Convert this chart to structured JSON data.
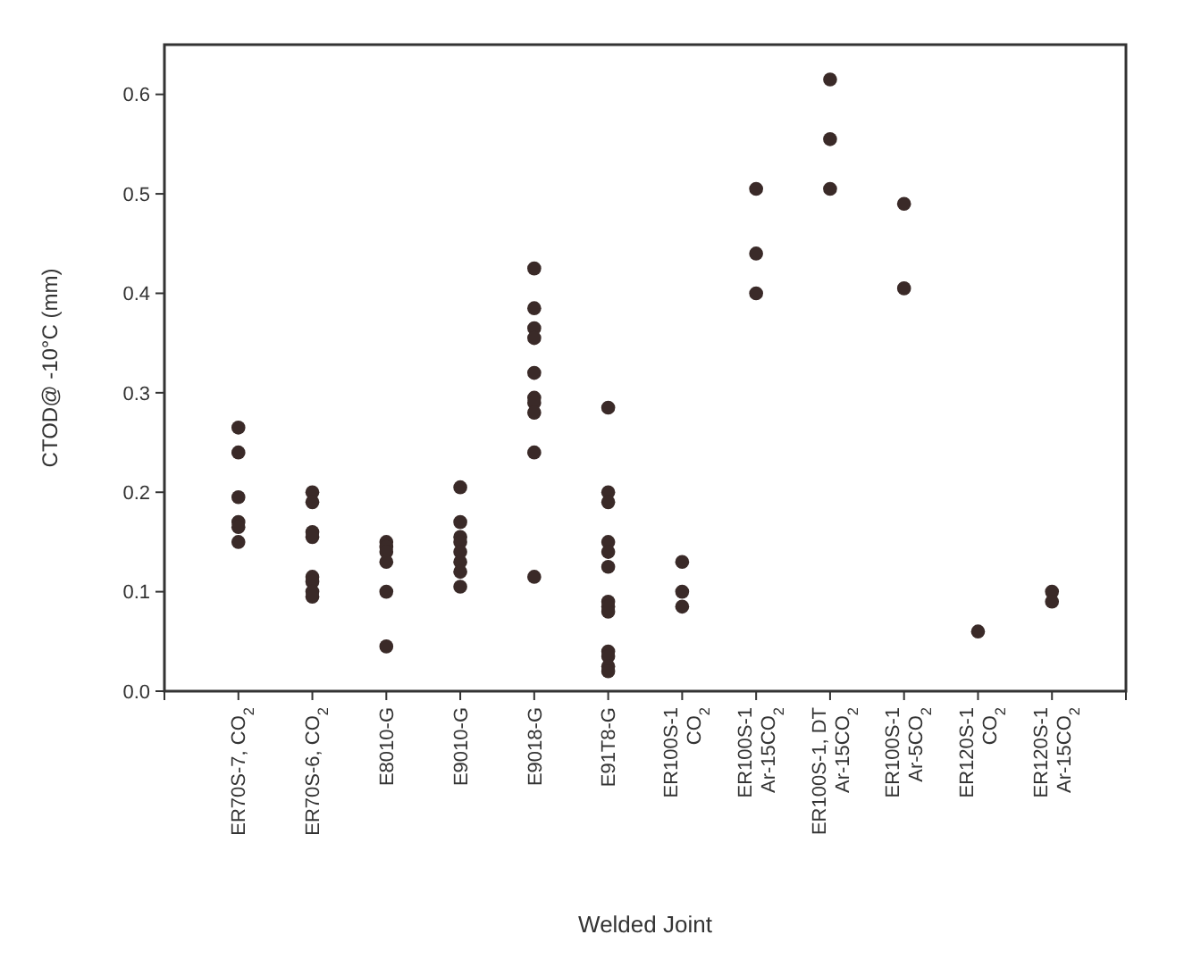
{
  "chart_data": {
    "type": "scatter",
    "xlabel": "Welded Joint",
    "ylabel": "CTOD@ -10°C (mm)",
    "categories": [
      "ER70S-7, CO$_{2}$",
      "ER70S-6, CO$_{2}$",
      "E8010-G",
      "E9010-G",
      "E9018-G",
      "E91T8-G",
      "ER100S-1\nCO$_{2}$",
      "ER100S-1\nAr-15CO$_{2}$",
      "ER100S-1, DT\nAr-15CO$_{2}$",
      "ER100S-1\nAr-5CO$_{2}$",
      "ER120S-1\nCO$_{2}$",
      "ER120S-1\nAr-15CO$_{2}$"
    ],
    "series": [
      {
        "color": "#3a2a28",
        "x": [
          "ER70S-7, CO$_{2}$",
          "ER70S-7, CO$_{2}$",
          "ER70S-7, CO$_{2}$",
          "ER70S-7, CO$_{2}$",
          "ER70S-7, CO$_{2}$",
          "ER70S-7, CO$_{2}$",
          "ER70S-6, CO$_{2}$",
          "ER70S-6, CO$_{2}$",
          "ER70S-6, CO$_{2}$",
          "ER70S-6, CO$_{2}$",
          "ER70S-6, CO$_{2}$",
          "ER70S-6, CO$_{2}$",
          "ER70S-6, CO$_{2}$",
          "ER70S-6, CO$_{2}$",
          "E8010-G",
          "E8010-G",
          "E8010-G",
          "E8010-G",
          "E8010-G",
          "E8010-G",
          "E9010-G",
          "E9010-G",
          "E9010-G",
          "E9010-G",
          "E9010-G",
          "E9010-G",
          "E9010-G",
          "E9010-G",
          "E9018-G",
          "E9018-G",
          "E9018-G",
          "E9018-G",
          "E9018-G",
          "E9018-G",
          "E9018-G",
          "E9018-G",
          "E9018-G",
          "E9018-G",
          "E91T8-G",
          "E91T8-G",
          "E91T8-G",
          "E91T8-G",
          "E91T8-G",
          "E91T8-G",
          "E91T8-G",
          "E91T8-G",
          "E91T8-G",
          "E91T8-G",
          "E91T8-G",
          "E91T8-G",
          "E91T8-G",
          "ER100S-1\nCO$_{2}$",
          "ER100S-1\nCO$_{2}$",
          "ER100S-1\nCO$_{2}$",
          "ER100S-1\nAr-15CO$_{2}$",
          "ER100S-1\nAr-15CO$_{2}$",
          "ER100S-1\nAr-15CO$_{2}$",
          "ER100S-1, DT\nAr-15CO$_{2}$",
          "ER100S-1, DT\nAr-15CO$_{2}$",
          "ER100S-1, DT\nAr-15CO$_{2}$",
          "ER100S-1\nAr-5CO$_{2}$",
          "ER100S-1\nAr-5CO$_{2}$",
          "ER120S-1\nCO$_{2}$",
          "ER120S-1\nAr-15CO$_{2}$",
          "ER120S-1\nAr-15CO$_{2}$"
        ],
        "values": [
          0.265,
          0.24,
          0.195,
          0.17,
          0.165,
          0.15,
          0.2,
          0.19,
          0.16,
          0.155,
          0.115,
          0.11,
          0.1,
          0.095,
          0.15,
          0.145,
          0.14,
          0.13,
          0.1,
          0.045,
          0.205,
          0.17,
          0.155,
          0.15,
          0.14,
          0.13,
          0.12,
          0.105,
          0.425,
          0.385,
          0.365,
          0.355,
          0.32,
          0.295,
          0.29,
          0.28,
          0.24,
          0.115,
          0.285,
          0.2,
          0.19,
          0.15,
          0.14,
          0.125,
          0.09,
          0.085,
          0.08,
          0.04,
          0.035,
          0.025,
          0.02,
          0.13,
          0.1,
          0.085,
          0.505,
          0.44,
          0.4,
          0.615,
          0.555,
          0.505,
          0.49,
          0.405,
          0.06,
          0.1,
          0.09
        ]
      }
    ],
    "ylim": [
      0,
      0.65
    ],
    "yticks": [
      {
        "value": 0,
        "label": "0.0"
      },
      0.1,
      0.2,
      0.3,
      0.4,
      0.5,
      0.6
    ],
    "marker": "circle",
    "grid": false
  }
}
